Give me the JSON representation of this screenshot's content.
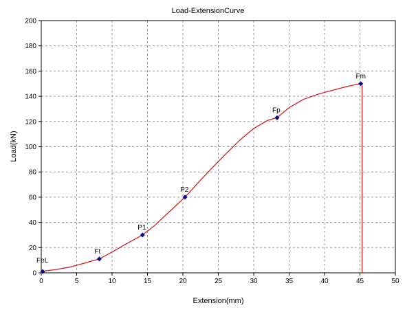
{
  "chart_data": {
    "type": "line",
    "title": "Load-ExtensionCurve",
    "xlabel": "Extension(mm)",
    "ylabel": "Load(kN)",
    "xlim": [
      0,
      50
    ],
    "ylim": [
      0,
      200
    ],
    "x_ticks": [
      0,
      5,
      10,
      15,
      20,
      25,
      30,
      35,
      40,
      45,
      50
    ],
    "y_ticks": [
      0,
      20,
      40,
      60,
      80,
      100,
      120,
      140,
      160,
      180,
      200
    ],
    "grid": true,
    "line_color": "#cc2020",
    "marker_color": "#0a0a8a",
    "series": [
      {
        "x": [
          0,
          0.5,
          2,
          4,
          6,
          8.2,
          10,
          12,
          14.3,
          16,
          18,
          20.3,
          22,
          24,
          26,
          28,
          30,
          32,
          33.3,
          35,
          37,
          39,
          41,
          43,
          45,
          45.3,
          45.3
        ],
        "y": [
          0,
          1.5,
          2.5,
          4.5,
          7.5,
          11,
          16.5,
          23,
          30,
          37.5,
          48,
          60,
          70.5,
          82.5,
          94,
          105,
          114.5,
          121,
          123,
          131,
          137.5,
          141.5,
          144.5,
          147.5,
          150,
          150,
          0
        ]
      }
    ],
    "points": [
      {
        "label": "FeL",
        "x": 0.2,
        "y": 1
      },
      {
        "label": "Ft",
        "x": 8.2,
        "y": 11
      },
      {
        "label": "P1",
        "x": 14.3,
        "y": 30
      },
      {
        "label": "P2",
        "x": 20.3,
        "y": 60
      },
      {
        "label": "Fp",
        "x": 33.3,
        "y": 123
      },
      {
        "label": "Fm",
        "x": 45.1,
        "y": 150
      }
    ]
  }
}
